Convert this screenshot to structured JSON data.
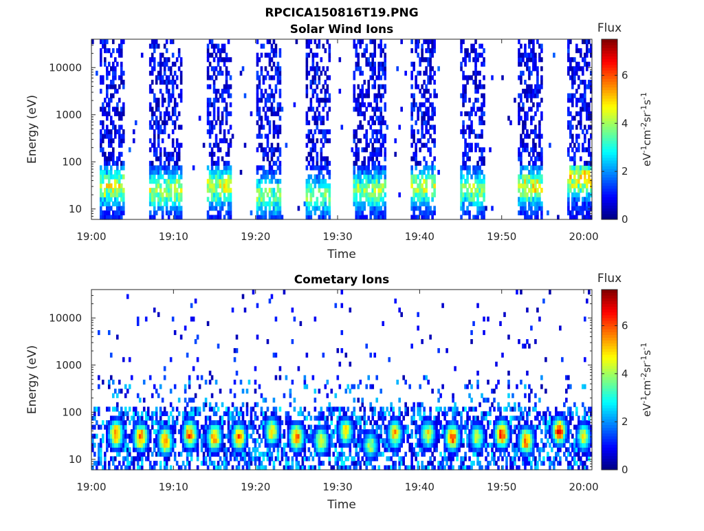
{
  "figure": {
    "filename": "RPCICA150816T19.PNG"
  },
  "chart_data": [
    {
      "type": "heatmap",
      "title": "Solar Wind Ions",
      "xlabel": "Time",
      "ylabel": "Energy (eV)",
      "x_ticks": [
        "19:00",
        "19:10",
        "19:20",
        "19:30",
        "19:40",
        "19:50",
        "20:00"
      ],
      "x_range": [
        "19:00",
        "20:01"
      ],
      "y_scale": "log",
      "y_ticks": [
        10,
        100,
        1000,
        10000
      ],
      "y_tick_labels": [
        "10",
        "100",
        "1000",
        "10000"
      ],
      "y_range": [
        6,
        40000
      ],
      "colorbar": {
        "title": "Flux",
        "label": "eV-1cm-2sr-1s-1",
        "label_html_parts": [
          "eV",
          "-1",
          "cm",
          "-2",
          "sr",
          "-1",
          "s",
          "-1"
        ],
        "ticks": [
          0,
          2,
          4,
          6
        ],
        "range": [
          0,
          7.5
        ],
        "colormap": "jet"
      },
      "bursts": [
        {
          "start": "19:01",
          "end": "19:04",
          "peak_energy_eV": 30,
          "peak_flux": 4.2
        },
        {
          "start": "19:07",
          "end": "19:11",
          "peak_energy_eV": 25,
          "peak_flux": 4.0
        },
        {
          "start": "19:14",
          "end": "19:17",
          "peak_energy_eV": 30,
          "peak_flux": 4.3
        },
        {
          "start": "19:20",
          "end": "19:23",
          "peak_energy_eV": 20,
          "peak_flux": 3.5
        },
        {
          "start": "19:26",
          "end": "19:29",
          "peak_energy_eV": 20,
          "peak_flux": 3.4
        },
        {
          "start": "19:32",
          "end": "19:36",
          "peak_energy_eV": 25,
          "peak_flux": 3.6
        },
        {
          "start": "19:39",
          "end": "19:42",
          "peak_energy_eV": 30,
          "peak_flux": 4.0
        },
        {
          "start": "19:45",
          "end": "19:48",
          "peak_energy_eV": 25,
          "peak_flux": 3.6
        },
        {
          "start": "19:52",
          "end": "19:55",
          "peak_energy_eV": 30,
          "peak_flux": 4.4
        },
        {
          "start": "19:58",
          "end": "20:01",
          "peak_energy_eV": 45,
          "peak_flux": 4.6
        }
      ]
    },
    {
      "type": "heatmap",
      "title": "Cometary Ions",
      "xlabel": "Time",
      "ylabel": "Energy (eV)",
      "x_ticks": [
        "19:00",
        "19:10",
        "19:20",
        "19:30",
        "19:40",
        "19:50",
        "20:00"
      ],
      "x_range": [
        "19:00",
        "20:01"
      ],
      "y_scale": "log",
      "y_ticks": [
        10,
        100,
        1000,
        10000
      ],
      "y_tick_labels": [
        "10",
        "100",
        "1000",
        "10000"
      ],
      "y_range": [
        6,
        40000
      ],
      "colorbar": {
        "title": "Flux",
        "label": "eV-1cm-2sr-1s-1",
        "label_html_parts": [
          "eV",
          "-1",
          "cm",
          "-2",
          "sr",
          "-1",
          "s",
          "-1"
        ],
        "ticks": [
          0,
          2,
          4,
          6
        ],
        "range": [
          0,
          7.5
        ],
        "colormap": "jet"
      },
      "bursts": [
        {
          "time": "19:03",
          "peak_energy_eV": 35,
          "peak_flux": 6.8
        },
        {
          "time": "19:06",
          "peak_energy_eV": 30,
          "peak_flux": 7.0
        },
        {
          "time": "19:09",
          "peak_energy_eV": 25,
          "peak_flux": 6.6
        },
        {
          "time": "19:12",
          "peak_energy_eV": 35,
          "peak_flux": 6.8
        },
        {
          "time": "19:15",
          "peak_energy_eV": 30,
          "peak_flux": 6.5
        },
        {
          "time": "19:18",
          "peak_energy_eV": 30,
          "peak_flux": 6.4
        },
        {
          "time": "19:22",
          "peak_energy_eV": 40,
          "peak_flux": 5.8
        },
        {
          "time": "19:25",
          "peak_energy_eV": 30,
          "peak_flux": 6.8
        },
        {
          "time": "19:28",
          "peak_energy_eV": 25,
          "peak_flux": 5.6
        },
        {
          "time": "19:31",
          "peak_energy_eV": 40,
          "peak_flux": 5.6
        },
        {
          "time": "19:34",
          "peak_energy_eV": 20,
          "peak_flux": 4.8
        },
        {
          "time": "19:37",
          "peak_energy_eV": 35,
          "peak_flux": 6.0
        },
        {
          "time": "19:41",
          "peak_energy_eV": 35,
          "peak_flux": 5.4
        },
        {
          "time": "19:44",
          "peak_energy_eV": 30,
          "peak_flux": 6.8
        },
        {
          "time": "19:47",
          "peak_energy_eV": 30,
          "peak_flux": 5.0
        },
        {
          "time": "19:50",
          "peak_energy_eV": 35,
          "peak_flux": 7.2
        },
        {
          "time": "19:53",
          "peak_energy_eV": 25,
          "peak_flux": 6.6
        },
        {
          "time": "19:57",
          "peak_energy_eV": 40,
          "peak_flux": 7.2
        },
        {
          "time": "20:00",
          "peak_energy_eV": 30,
          "peak_flux": 5.2
        }
      ]
    }
  ]
}
